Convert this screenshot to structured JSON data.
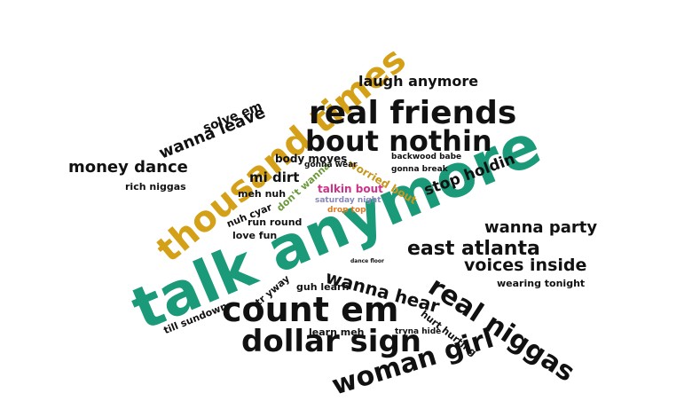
{
  "cloud": {
    "words": [
      {
        "text": "talk anymore",
        "color": "#1a9a78"
      },
      {
        "text": "thousand times",
        "color": "#d4a017"
      },
      {
        "text": "real friends",
        "color": "#111111"
      },
      {
        "text": "bout nothin",
        "color": "#111111"
      },
      {
        "text": "count em",
        "color": "#111111"
      },
      {
        "text": "dollar sign",
        "color": "#111111"
      },
      {
        "text": "woman girl",
        "color": "#111111"
      },
      {
        "text": "real niggas",
        "color": "#111111"
      },
      {
        "text": "east atlanta",
        "color": "#111111"
      },
      {
        "text": "wanna hear",
        "color": "#111111"
      },
      {
        "text": "voices inside",
        "color": "#111111"
      },
      {
        "text": "wanna party",
        "color": "#111111"
      },
      {
        "text": "money dance",
        "color": "#111111"
      },
      {
        "text": "wanna leave",
        "color": "#111111"
      },
      {
        "text": "stop holdin",
        "color": "#111111"
      },
      {
        "text": "laugh anymore",
        "color": "#111111"
      },
      {
        "text": "solve em",
        "color": "#111111"
      },
      {
        "text": "mi dirt",
        "color": "#111111"
      },
      {
        "text": "body moves",
        "color": "#111111"
      },
      {
        "text": "worried bout",
        "color": "#c8961c"
      },
      {
        "text": "don't wanna",
        "color": "#6a9a3a"
      },
      {
        "text": "talkin bout",
        "color": "#cc3388"
      },
      {
        "text": "saturday night",
        "color": "#8888bb"
      },
      {
        "text": "drop top",
        "color": "#e07a20"
      },
      {
        "text": "rich niggas",
        "color": "#111111"
      },
      {
        "text": "meh nuh",
        "color": "#111111"
      },
      {
        "text": "nuh cyar",
        "color": "#111111"
      },
      {
        "text": "run round",
        "color": "#111111"
      },
      {
        "text": "love fun",
        "color": "#111111"
      },
      {
        "text": "tr yway",
        "color": "#111111"
      },
      {
        "text": "guh learn",
        "color": "#111111"
      },
      {
        "text": "learn meh",
        "color": "#111111"
      },
      {
        "text": "till sundown",
        "color": "#111111"
      },
      {
        "text": "hurt hurting",
        "color": "#111111"
      },
      {
        "text": "tryna hide",
        "color": "#111111"
      },
      {
        "text": "wearing tonight",
        "color": "#111111"
      },
      {
        "text": "backwood babe",
        "color": "#111111"
      },
      {
        "text": "gonna wear",
        "color": "#111111"
      },
      {
        "text": "gonna break",
        "color": "#111111"
      },
      {
        "text": "dance floor",
        "color": "#111111"
      }
    ]
  }
}
